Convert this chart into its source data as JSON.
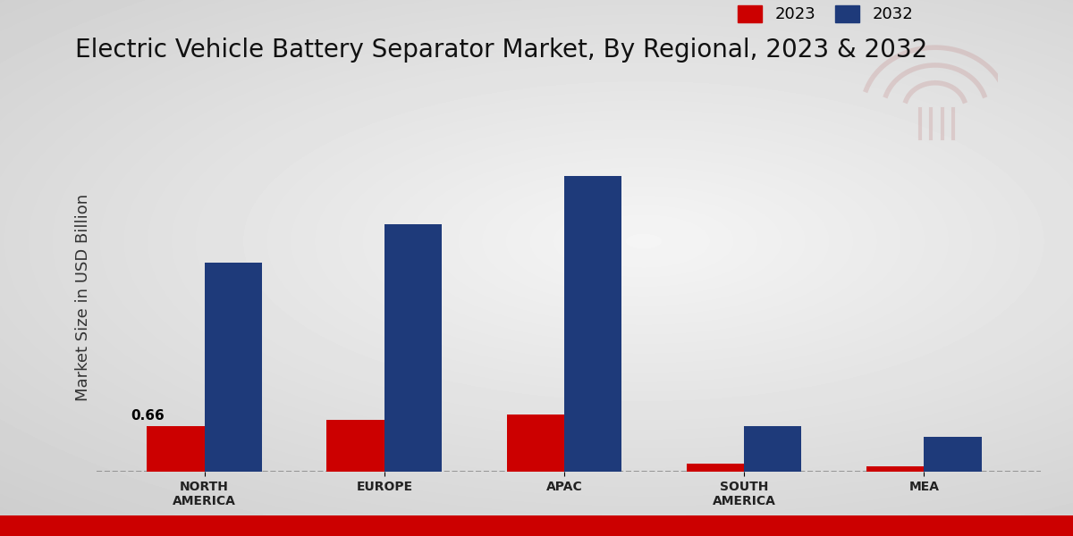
{
  "title": "Electric Vehicle Battery Separator Market, By Regional, 2023 & 2032",
  "ylabel": "Market Size in USD Billion",
  "categories": [
    "NORTH\nAMERICA",
    "EUROPE",
    "APAC",
    "SOUTH\nAMERICA",
    "MEA"
  ],
  "values_2023": [
    0.66,
    0.75,
    0.82,
    0.12,
    0.08
  ],
  "values_2032": [
    3.0,
    3.55,
    4.25,
    0.65,
    0.5
  ],
  "color_2023": "#cc0000",
  "color_2032": "#1e3a7a",
  "annotation_label": "0.66",
  "annotation_region_idx": 0,
  "dashed_line_y": 0.0,
  "bar_width": 0.32,
  "legend_labels": [
    "2023",
    "2032"
  ],
  "title_fontsize": 20,
  "axis_label_fontsize": 13,
  "tick_fontsize": 10,
  "legend_fontsize": 13,
  "bg_outer": "#c8c8c8",
  "bg_inner": "#f0f0f0",
  "footer_color": "#cc0000",
  "ylim": [
    0,
    5.0
  ]
}
